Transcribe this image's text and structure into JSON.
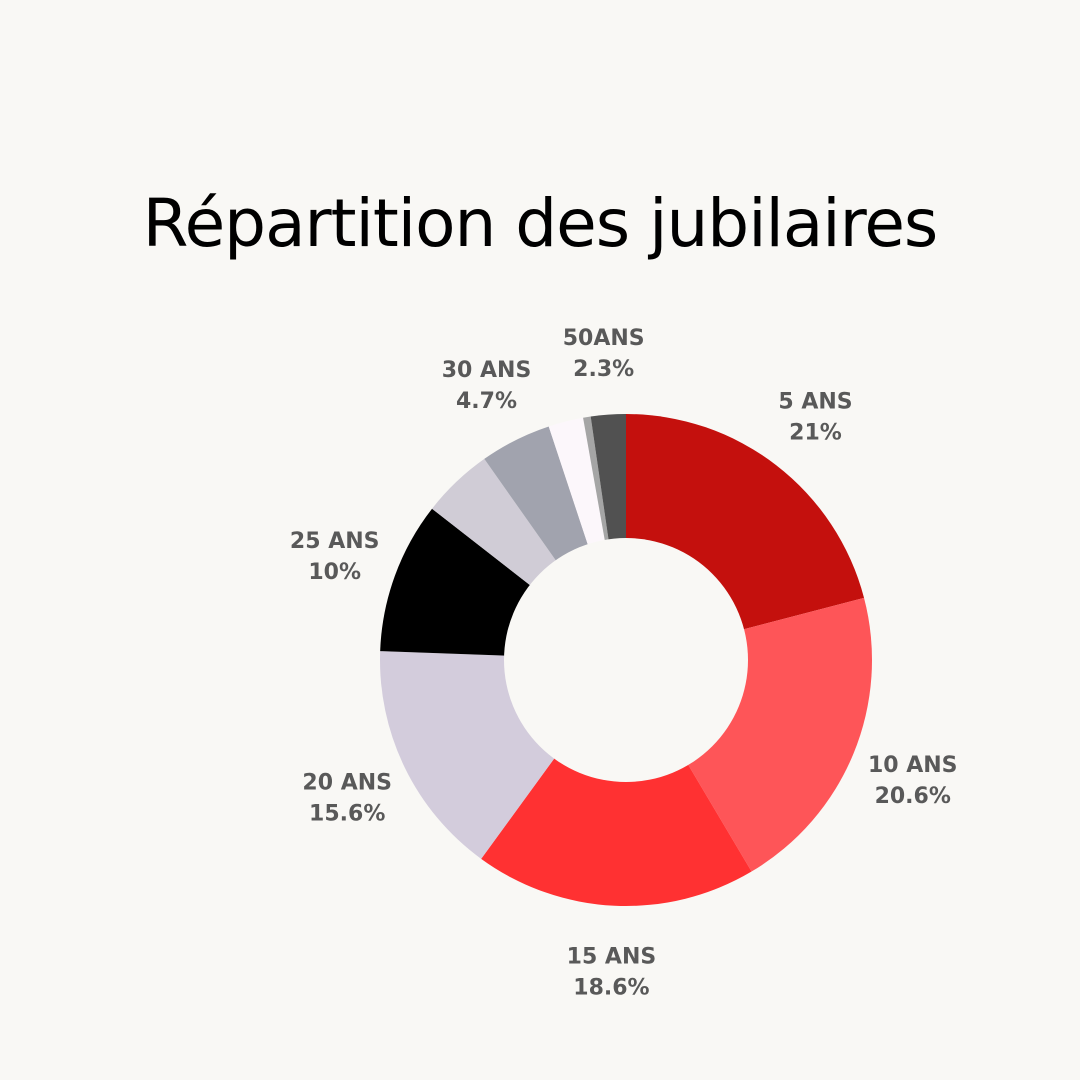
{
  "colors": {
    "background": "#f9f8f5",
    "title": "#000000",
    "label": "#595959"
  },
  "chart_data": {
    "type": "pie",
    "variant": "donut",
    "title": "Répartition des jubilaires",
    "start_angle_deg": 0,
    "direction": "clockwise",
    "slices": [
      {
        "label": "5 ANS",
        "pct_label": "21%",
        "value": 21.0,
        "color": "#c4100d",
        "show_label": true
      },
      {
        "label": "10 ANS",
        "pct_label": "20.6%",
        "value": 20.6,
        "color": "#fe5558",
        "show_label": true
      },
      {
        "label": "15 ANS",
        "pct_label": "18.6%",
        "value": 18.6,
        "color": "#ff3132",
        "show_label": true
      },
      {
        "label": "20 ANS",
        "pct_label": "15.6%",
        "value": 15.6,
        "color": "#d3ccdc",
        "show_label": true
      },
      {
        "label": "25 ANS",
        "pct_label": "10%",
        "value": 10.0,
        "color": "#000000",
        "show_label": true
      },
      {
        "label": "",
        "pct_label": "",
        "value": 4.7,
        "color": "#d0ccd6",
        "show_label": false
      },
      {
        "label": "30 ANS",
        "pct_label": "4.7%",
        "value": 4.7,
        "color": "#a1a3ae",
        "show_label": true
      },
      {
        "label": "",
        "pct_label": "",
        "value": 2.3,
        "color": "#fcf7fb",
        "show_label": false
      },
      {
        "label": "",
        "pct_label": "",
        "value": 0.5,
        "color": "#a5a5a5",
        "show_label": false
      },
      {
        "label": "50ANS",
        "pct_label": "2.3%",
        "value": 2.3,
        "color": "#515151",
        "show_label": true
      }
    ]
  }
}
